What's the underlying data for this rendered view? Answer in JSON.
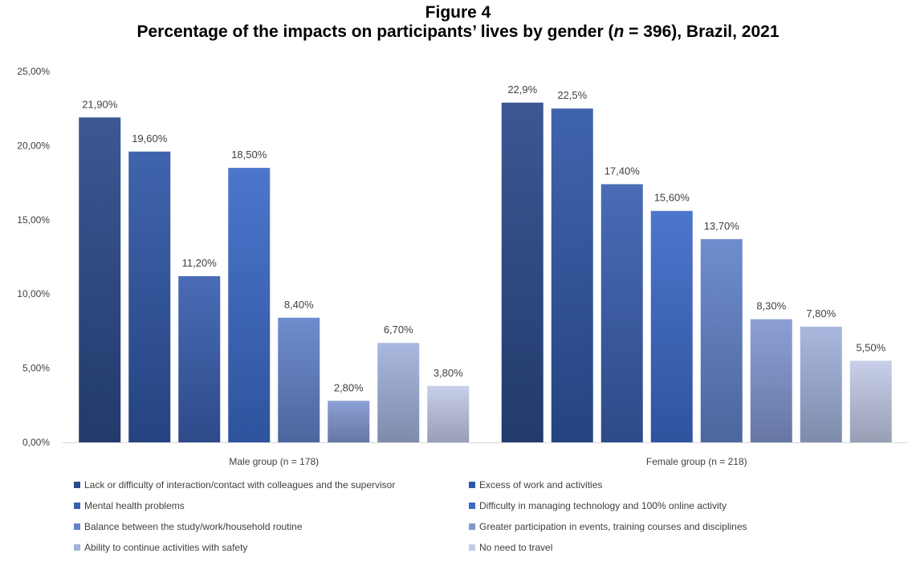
{
  "figure_label": "Figure 4",
  "title_parts": {
    "prefix": "Percentage of the impacts on participants’ lives by gender (",
    "italic": "n",
    "suffix": " = 396), Brazil, 2021"
  },
  "chart_data": {
    "type": "bar",
    "title": "Percentage of the impacts on participants’ lives by gender (n = 396), Brazil, 2021",
    "categories": [
      "Male group (n = 178)",
      "Female group (n = 218)"
    ],
    "ylim": [
      0,
      25
    ],
    "yticks": [
      0,
      5,
      10,
      15,
      20,
      25
    ],
    "ytick_labels": [
      "0,00%",
      "5,00%",
      "10,00%",
      "15,00%",
      "20,00%",
      "25,00%"
    ],
    "grid": false,
    "legend_position": "bottom",
    "series": [
      {
        "name": "Lack or difficulty of interaction/contact with colleagues and the supervisor",
        "color": "#2b4a8a",
        "values": [
          21.9,
          22.9
        ],
        "labels": [
          "21,90%",
          "22,9%"
        ]
      },
      {
        "name": "Excess of work and activities",
        "color": "#2f56a6",
        "values": [
          19.6,
          22.5
        ],
        "labels": [
          "19,60%",
          "22,5%"
        ]
      },
      {
        "name": "Mental health problems",
        "color": "#3a5fb0",
        "values": [
          11.2,
          17.4
        ],
        "labels": [
          "11,20%",
          "17,40%"
        ]
      },
      {
        "name": "Difficulty in managing technology and 100% online activity",
        "color": "#3c6ac9",
        "values": [
          18.5,
          15.6
        ],
        "labels": [
          "18,50%",
          "15,60%"
        ]
      },
      {
        "name": "Balance between the study/work/household routine",
        "color": "#6283c9",
        "values": [
          8.4,
          13.7
        ],
        "labels": [
          "8,40%",
          "13,70%"
        ]
      },
      {
        "name": "Greater participation in events, training courses and disciplines",
        "color": "#8398d2",
        "values": [
          2.8,
          8.3
        ],
        "labels": [
          "2,80%",
          "8,30%"
        ]
      },
      {
        "name": "Ability to continue activities with safety",
        "color": "#a3b2dc",
        "values": [
          6.7,
          7.8
        ],
        "labels": [
          "6,70%",
          "7,80%"
        ]
      },
      {
        "name": "No need to travel",
        "color": "#c3cbe7",
        "values": [
          3.8,
          5.5
        ],
        "labels": [
          "3,80%",
          "5,50%"
        ]
      }
    ]
  }
}
